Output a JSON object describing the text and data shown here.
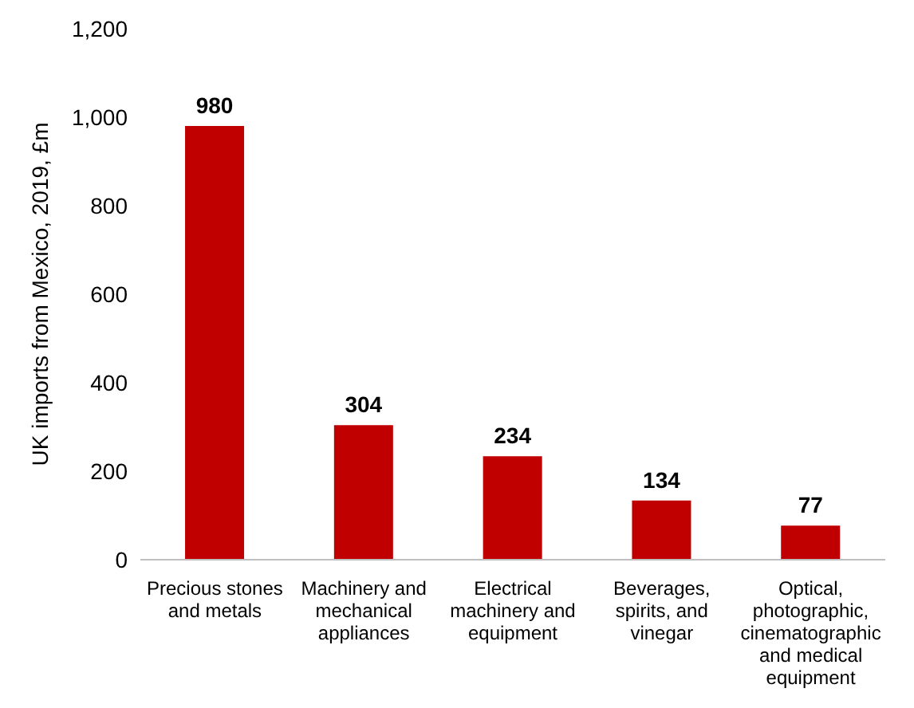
{
  "chart_data": {
    "type": "bar",
    "ylabel": "UK imports from Mexico, 2019, £m",
    "categories": [
      "Precious stones and metals",
      "Machinery and mechanical appliances",
      "Electrical machinery and equipment",
      "Beverages, spirits, and vinegar",
      "Optical, photographic, cinematographic and medical equipment"
    ],
    "values": [
      980,
      304,
      234,
      134,
      77
    ],
    "color": "#c00000",
    "ylim": [
      0,
      1200
    ],
    "yticks": [
      0,
      200,
      400,
      600,
      800,
      {
        "value": 1000,
        "label": "1,000"
      },
      {
        "value": 1200,
        "label": "1,200"
      }
    ],
    "grid": false,
    "data_labels": true
  }
}
